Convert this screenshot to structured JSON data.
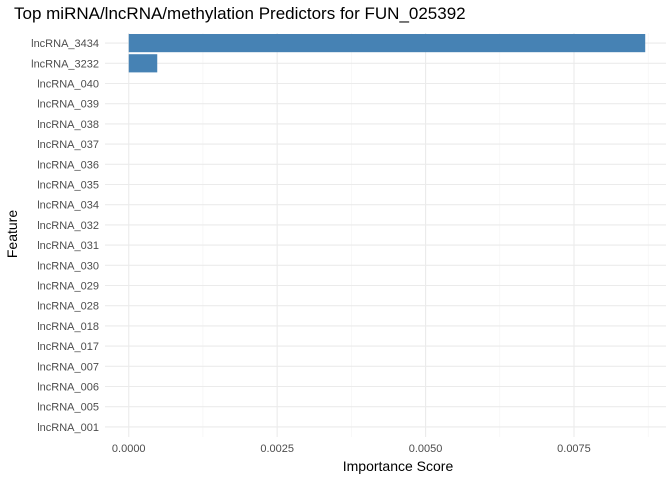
{
  "chart_data": {
    "type": "bar",
    "orientation": "horizontal",
    "title": "Top miRNA/lncRNA/methylation Predictors for FUN_025392",
    "xlabel": "Importance Score",
    "ylabel": "Feature",
    "xlim": [
      -0.0004,
      0.00905
    ],
    "x_ticks": [
      0.0,
      0.0025,
      0.005,
      0.0075
    ],
    "x_tick_labels": [
      "0.0000",
      "0.0025",
      "0.0050",
      "0.0075"
    ],
    "categories": [
      "lncRNA_3434",
      "lncRNA_3232",
      "lncRNA_040",
      "lncRNA_039",
      "lncRNA_038",
      "lncRNA_037",
      "lncRNA_036",
      "lncRNA_035",
      "lncRNA_034",
      "lncRNA_032",
      "lncRNA_031",
      "lncRNA_030",
      "lncRNA_029",
      "lncRNA_028",
      "lncRNA_018",
      "lncRNA_017",
      "lncRNA_007",
      "lncRNA_006",
      "lncRNA_005",
      "lncRNA_001"
    ],
    "values": [
      0.0087,
      0.00048,
      0,
      0,
      0,
      0,
      0,
      0,
      0,
      0,
      0,
      0,
      0,
      0,
      0,
      0,
      0,
      0,
      0,
      0
    ],
    "bar_color": "#4682B4",
    "grid": true,
    "legend": "none"
  }
}
